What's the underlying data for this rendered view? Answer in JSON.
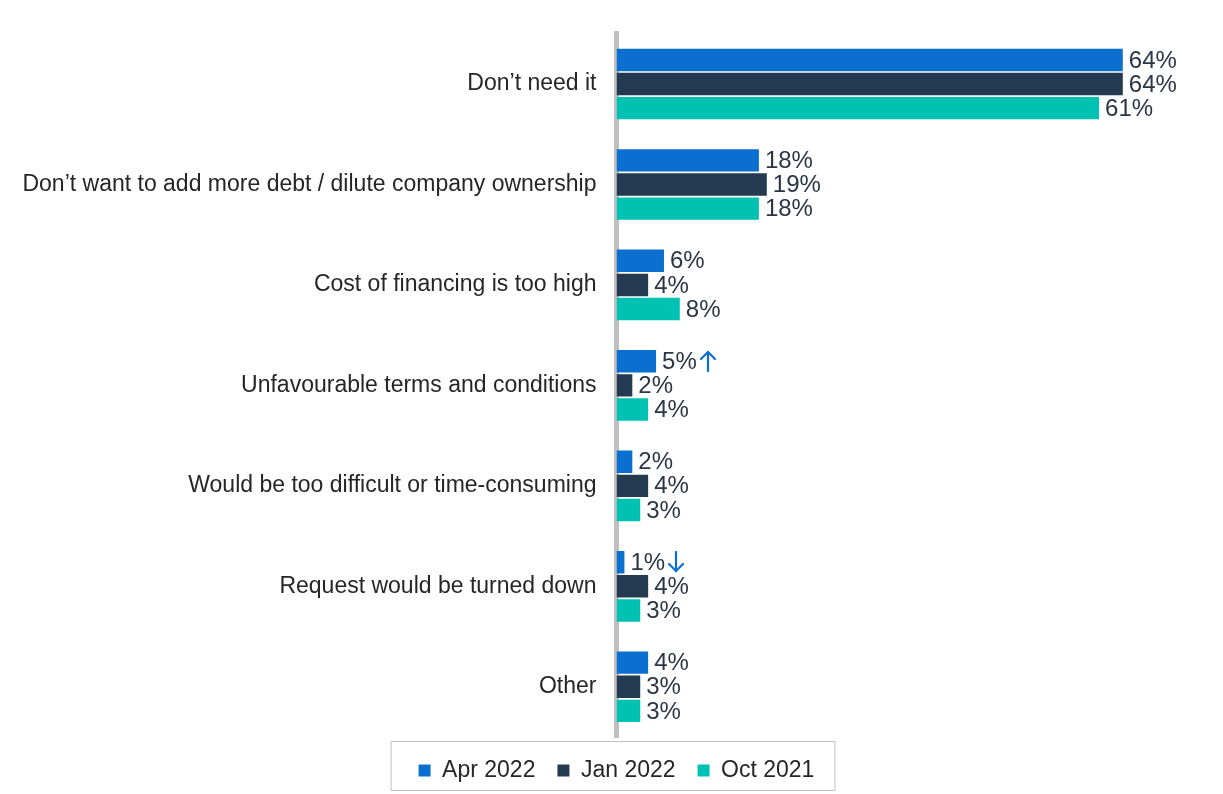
{
  "chart_data": {
    "type": "bar",
    "orientation": "horizontal",
    "legend": "bottom",
    "data_labels": true,
    "categories": [
      "Don’t need it",
      "Don’t want to add more debt / dilute company ownership",
      "Cost of financing is too high",
      "Unfavourable terms and conditions",
      "Would be too difficult or time-consuming",
      "Request would be turned down",
      "Other"
    ],
    "series": [
      {
        "name": "Apr 2022",
        "color": "#0a6fcf",
        "values": [
          64,
          18,
          6,
          5,
          2,
          1,
          4
        ],
        "value_labels": [
          "64%",
          "18%",
          "6%",
          "5%",
          "2%",
          "1%",
          "4%"
        ]
      },
      {
        "name": "Jan 2022",
        "color": "#233a50",
        "values": [
          64,
          19,
          4,
          2,
          4,
          4,
          3
        ],
        "value_labels": [
          "64%",
          "19%",
          "4%",
          "2%",
          "4%",
          "4%",
          "3%"
        ]
      },
      {
        "name": "Oct 2021",
        "color": "#00c2b2",
        "values": [
          61,
          18,
          8,
          4,
          3,
          3,
          3
        ],
        "value_labels": [
          "61%",
          "18%",
          "8%",
          "4%",
          "3%",
          "3%",
          "3%"
        ]
      }
    ]
  }
}
